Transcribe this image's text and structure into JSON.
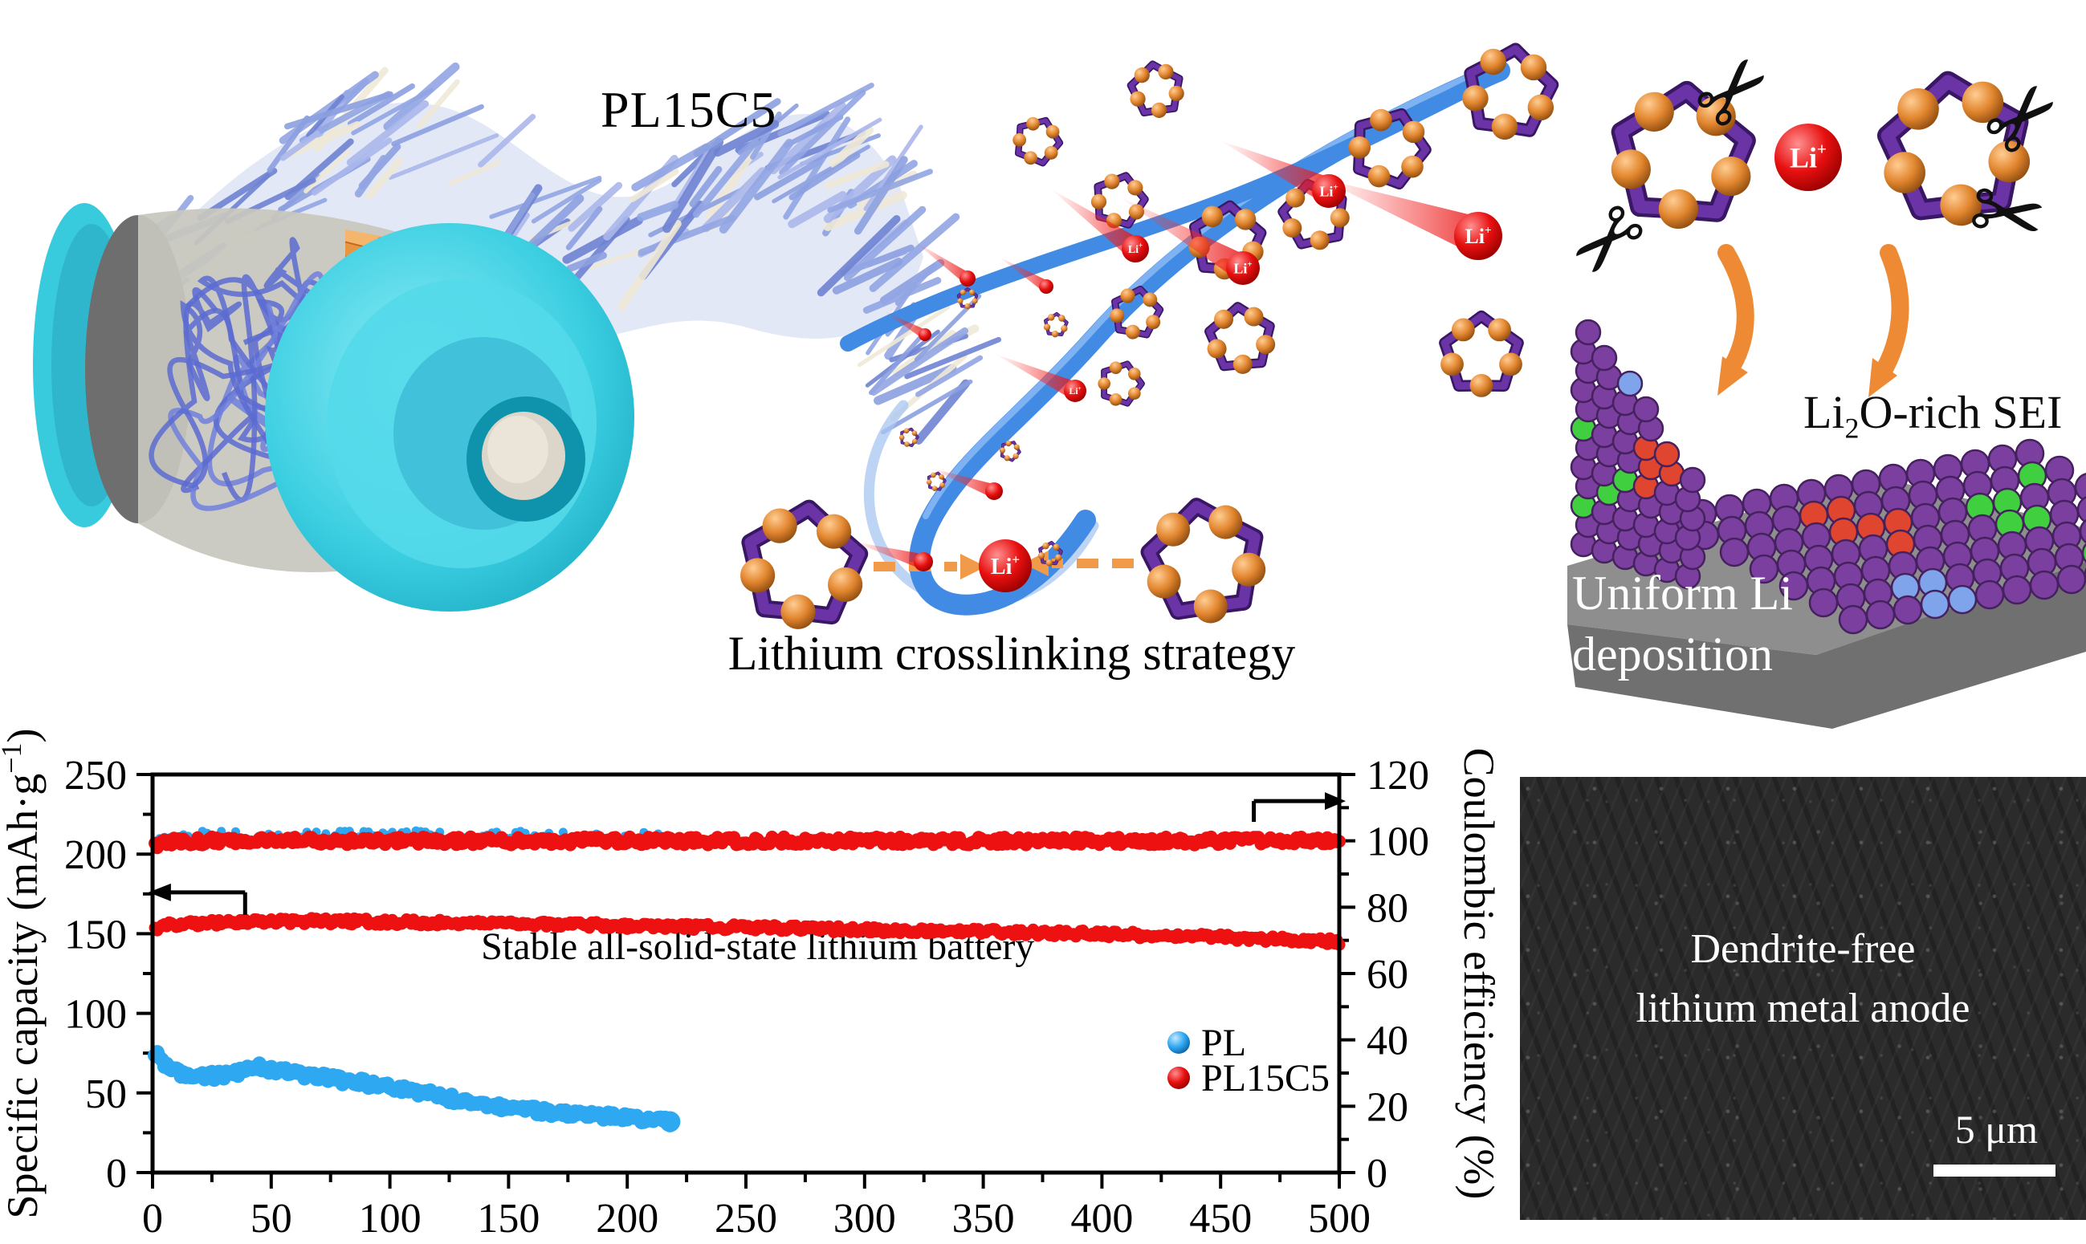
{
  "labels": {
    "membrane": "PL15C5",
    "crosslinking": "Lithium crosslinking strategy",
    "li2o_sei": {
      "prefix": "Li",
      "sub": "2",
      "suffix": "O-rich SEI"
    },
    "uniform_li": {
      "line1": "Uniform Li",
      "line2": "deposition"
    },
    "li_ion": {
      "text": "Li",
      "sup": "+"
    }
  },
  "sem_panel": {
    "caption_line1": "Dendrite-free",
    "caption_line2": "lithium metal anode",
    "scale_label": "5 μm"
  },
  "colors": {
    "crown_purple": "#6A33A6",
    "ether_ball_orange": "#E2862F",
    "li_ion_red": "#DD0E0E",
    "ribbon_blue": "#418BE4",
    "battery_cyan": "#3BD2E4",
    "arrow_orange": "#EE8A33",
    "pl_series_blue": "#2FA8F2",
    "pl15c5_series_red": "#EE1111",
    "sei_sphere_purple": "#7B3FA0",
    "substrate_gray": "#8E8E8E",
    "sem_background": "#2B2B2B"
  },
  "chart_data": {
    "type": "scatter",
    "xlabel": "",
    "ylabel_left": {
      "pre": "Specific capacity (mAh·g",
      "sup": "−1",
      "post": ")"
    },
    "ylabel_right": "Coulombic efficiency (%)",
    "xlim": [
      0,
      500
    ],
    "ylim_left": [
      0,
      250
    ],
    "ylim_right": [
      0,
      120
    ],
    "x_ticks": [
      0,
      50,
      100,
      150,
      200,
      250,
      300,
      350,
      400,
      450,
      500
    ],
    "x_minor_step": 25,
    "y_ticks_left": [
      0,
      50,
      100,
      150,
      200,
      250
    ],
    "y_left_minor_step": 25,
    "y_ticks_right": [
      0,
      20,
      40,
      60,
      80,
      100,
      120
    ],
    "y_right_minor_step": 10,
    "grid": false,
    "annotation": {
      "text": "Stable all-solid-state lithium battery",
      "x": 255,
      "y_left": 134
    },
    "legend": {
      "position": "inside-right-bottom",
      "entries": [
        {
          "label": "PL",
          "color": "#2FA8F2"
        },
        {
          "label": "PL15C5",
          "color": "#EE1111"
        }
      ]
    },
    "series": [
      {
        "name": "PL specific capacity",
        "axis": "left",
        "unit": "mAh·g⁻¹",
        "color": "#2FA8F2",
        "points": [
          [
            1,
            75
          ],
          [
            4,
            70
          ],
          [
            8,
            65
          ],
          [
            14,
            61
          ],
          [
            22,
            60
          ],
          [
            32,
            62
          ],
          [
            45,
            66
          ],
          [
            58,
            63
          ],
          [
            75,
            59
          ],
          [
            95,
            55
          ],
          [
            115,
            50
          ],
          [
            139,
            42
          ],
          [
            160,
            39
          ],
          [
            185,
            36
          ],
          [
            205,
            33.5
          ],
          [
            218,
            32
          ]
        ]
      },
      {
        "name": "PL15C5 specific capacity",
        "axis": "left",
        "unit": "mAh·g⁻¹",
        "color": "#EE1111",
        "points": [
          [
            1,
            152
          ],
          [
            6,
            155
          ],
          [
            15,
            156.5
          ],
          [
            40,
            157.5
          ],
          [
            70,
            158
          ],
          [
            120,
            157
          ],
          [
            180,
            155.5
          ],
          [
            240,
            154
          ],
          [
            300,
            152.5
          ],
          [
            360,
            151
          ],
          [
            410,
            149.5
          ],
          [
            455,
            147.5
          ],
          [
            500,
            145
          ]
        ]
      },
      {
        "name": "PL coulombic efficiency",
        "axis": "right",
        "unit": "%",
        "color": "#2FA8F2",
        "points": [
          [
            1,
            98
          ],
          [
            3,
            99.5
          ],
          [
            10,
            101.3
          ],
          [
            50,
            101.4
          ],
          [
            100,
            101.5
          ],
          [
            150,
            101.4
          ],
          [
            218,
            101.3
          ]
        ]
      },
      {
        "name": "PL15C5 coulombic efficiency",
        "axis": "right",
        "unit": "%",
        "color": "#EE1111",
        "points": [
          [
            1,
            99
          ],
          [
            10,
            100
          ],
          [
            100,
            100
          ],
          [
            250,
            100
          ],
          [
            400,
            100
          ],
          [
            500,
            100
          ]
        ]
      }
    ],
    "indicator_arrows": [
      {
        "target_axis": "left",
        "y_left": 176,
        "x_from": 3,
        "x_to": 39
      },
      {
        "target_axis": "right",
        "y_right": 112,
        "x_from": 464,
        "x_to": 500
      }
    ]
  }
}
